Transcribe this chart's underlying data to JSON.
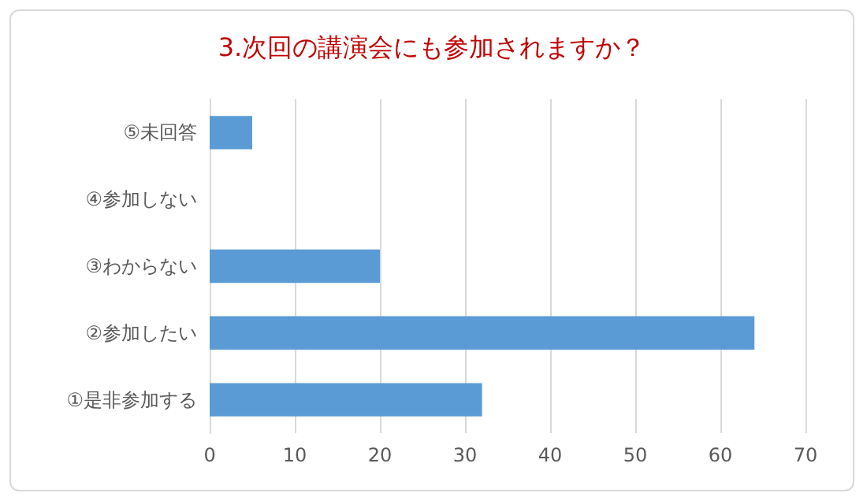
{
  "chart_data": {
    "type": "bar",
    "orientation": "horizontal",
    "title": "3.次回の講演会にも参加されますか？",
    "categories": [
      "⑤未回答",
      "④参加しない",
      "③わからない",
      "②参加したい",
      "①是非参加する"
    ],
    "values": [
      5,
      0,
      20,
      64,
      32
    ],
    "color": "#5b9bd5",
    "xlim": [
      0,
      70
    ],
    "xticks": [
      0,
      10,
      20,
      30,
      40,
      50,
      60,
      70
    ],
    "grid": "x"
  }
}
